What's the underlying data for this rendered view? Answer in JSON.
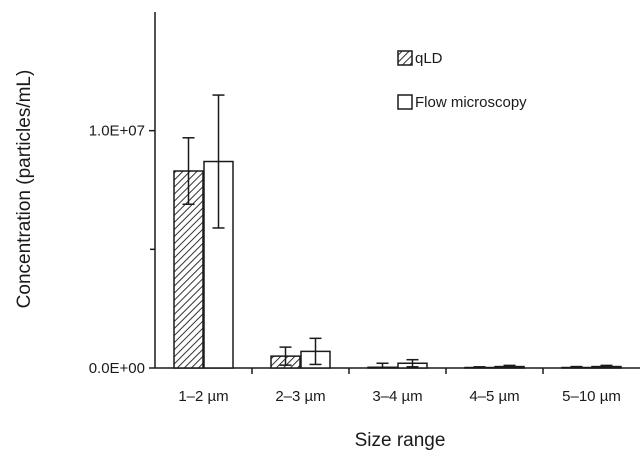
{
  "chart_data": {
    "type": "bar",
    "categories": [
      "1–2 µm",
      "2–3 µm",
      "3–4 µm",
      "4–5 µm",
      "5–10 µm"
    ],
    "series": [
      {
        "name": "qLD",
        "values": [
          8300000,
          500000,
          30000,
          20000,
          20000
        ],
        "errors": [
          1400000,
          380000,
          170000,
          30000,
          40000
        ],
        "pattern": "hatched"
      },
      {
        "name": "Flow microscopy",
        "values": [
          8700000,
          700000,
          200000,
          60000,
          60000
        ],
        "errors": [
          2800000,
          550000,
          150000,
          50000,
          50000
        ],
        "pattern": "open"
      }
    ],
    "title": "",
    "xlabel": "Size range",
    "ylabel": "Concentration (particles/mL)",
    "ylim": [
      0,
      15000000
    ],
    "yticks": [
      0,
      10000000
    ],
    "ytick_labels": [
      "0.0E+00",
      "1.0E+07"
    ],
    "ytick_minor": [
      5000000
    ],
    "grid": false,
    "legend": "top-right",
    "colors": {
      "axis": "#1a1a1a",
      "bar_fill": "#ffffff",
      "hatch": "#333333"
    }
  }
}
